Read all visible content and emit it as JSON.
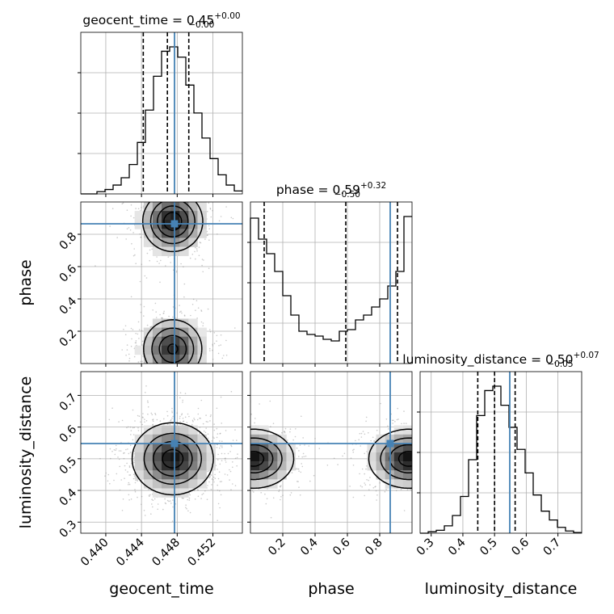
{
  "chart_data": {
    "type": "corner",
    "title_eq": "=",
    "grid": true,
    "truth_color": "#4682b4",
    "params": [
      {
        "name": "geocent_time",
        "label": "geocent_time",
        "title": {
          "median": "0.45",
          "plus": "+0.00",
          "minus": "−0.00"
        },
        "range": [
          0.4372,
          0.4553
        ],
        "ticks": [
          0.44,
          0.444,
          0.448,
          0.452
        ],
        "tick_labels": [
          "0.440",
          "0.444",
          "0.448",
          "0.452"
        ],
        "quantiles": [
          0.4442,
          0.4469,
          0.4493
        ],
        "truth": 0.4477,
        "hist_edges_start": 0.4372,
        "hist_bin_width": 0.000905,
        "hist_counts": [
          0,
          0,
          0.015,
          0.03,
          0.06,
          0.11,
          0.2,
          0.35,
          0.57,
          0.8,
          0.97,
          1.0,
          0.93,
          0.74,
          0.55,
          0.38,
          0.24,
          0.13,
          0.06,
          0.02
        ]
      },
      {
        "name": "phase",
        "label": "phase",
        "title": {
          "median": "0.59",
          "plus": "+0.32",
          "minus": "−0.50"
        },
        "range": [
          0.0,
          1.0
        ],
        "ticks": [
          0.2,
          0.4,
          0.6,
          0.8
        ],
        "tick_labels": [
          "0.2",
          "0.4",
          "0.6",
          "0.8"
        ],
        "quantiles": [
          0.085,
          0.59,
          0.91
        ],
        "truth": 0.865,
        "hist_edges_start": 0.0,
        "hist_bin_width": 0.05,
        "hist_counts": [
          0.9,
          0.77,
          0.68,
          0.57,
          0.42,
          0.3,
          0.2,
          0.18,
          0.17,
          0.15,
          0.14,
          0.2,
          0.21,
          0.27,
          0.3,
          0.35,
          0.4,
          0.48,
          0.57,
          0.91
        ]
      },
      {
        "name": "luminosity_distance",
        "label": "luminosity_distance",
        "title": {
          "median": "0.50",
          "plus": "+0.07",
          "minus": "−0.05"
        },
        "range": [
          0.265,
          0.775
        ],
        "ticks": [
          0.3,
          0.4,
          0.5,
          0.6,
          0.7
        ],
        "tick_labels": [
          "0.3",
          "0.4",
          "0.5",
          "0.6",
          "0.7"
        ],
        "quantiles": [
          0.447,
          0.5,
          0.565
        ],
        "truth": 0.548,
        "hist_edges_start": 0.265,
        "hist_bin_width": 0.0255,
        "hist_counts": [
          0,
          0.01,
          0.02,
          0.05,
          0.12,
          0.25,
          0.5,
          0.8,
          0.97,
          1.0,
          0.87,
          0.72,
          0.57,
          0.41,
          0.26,
          0.15,
          0.09,
          0.04,
          0.015,
          0.005
        ]
      }
    ],
    "pairs": [
      {
        "x": "geocent_time",
        "y": "phase",
        "density_modes": [
          {
            "x": 0.4475,
            "y": 0.88,
            "sx": 0.0018,
            "sy": 0.1,
            "w": 1.0
          },
          {
            "x": 0.4475,
            "y": 0.09,
            "sx": 0.0018,
            "sy": 0.1,
            "w": 0.9
          }
        ],
        "contour_levels": [
          0.18,
          0.4,
          0.65,
          0.88
        ]
      },
      {
        "x": "geocent_time",
        "y": "luminosity_distance",
        "density_modes": [
          {
            "x": 0.4475,
            "y": 0.5,
            "sx": 0.0022,
            "sy": 0.055,
            "w": 1.0
          }
        ],
        "contour_levels": [
          0.12,
          0.35,
          0.62,
          0.88
        ]
      },
      {
        "x": "phase",
        "y": "luminosity_distance",
        "density_modes": [
          {
            "x": 0.02,
            "y": 0.5,
            "sx": 0.12,
            "sy": 0.045,
            "w": 1.0
          },
          {
            "x": 0.98,
            "y": 0.5,
            "sx": 0.12,
            "sy": 0.045,
            "w": 1.0
          }
        ],
        "contour_levels": [
          0.12,
          0.35,
          0.62,
          0.88
        ]
      }
    ]
  }
}
